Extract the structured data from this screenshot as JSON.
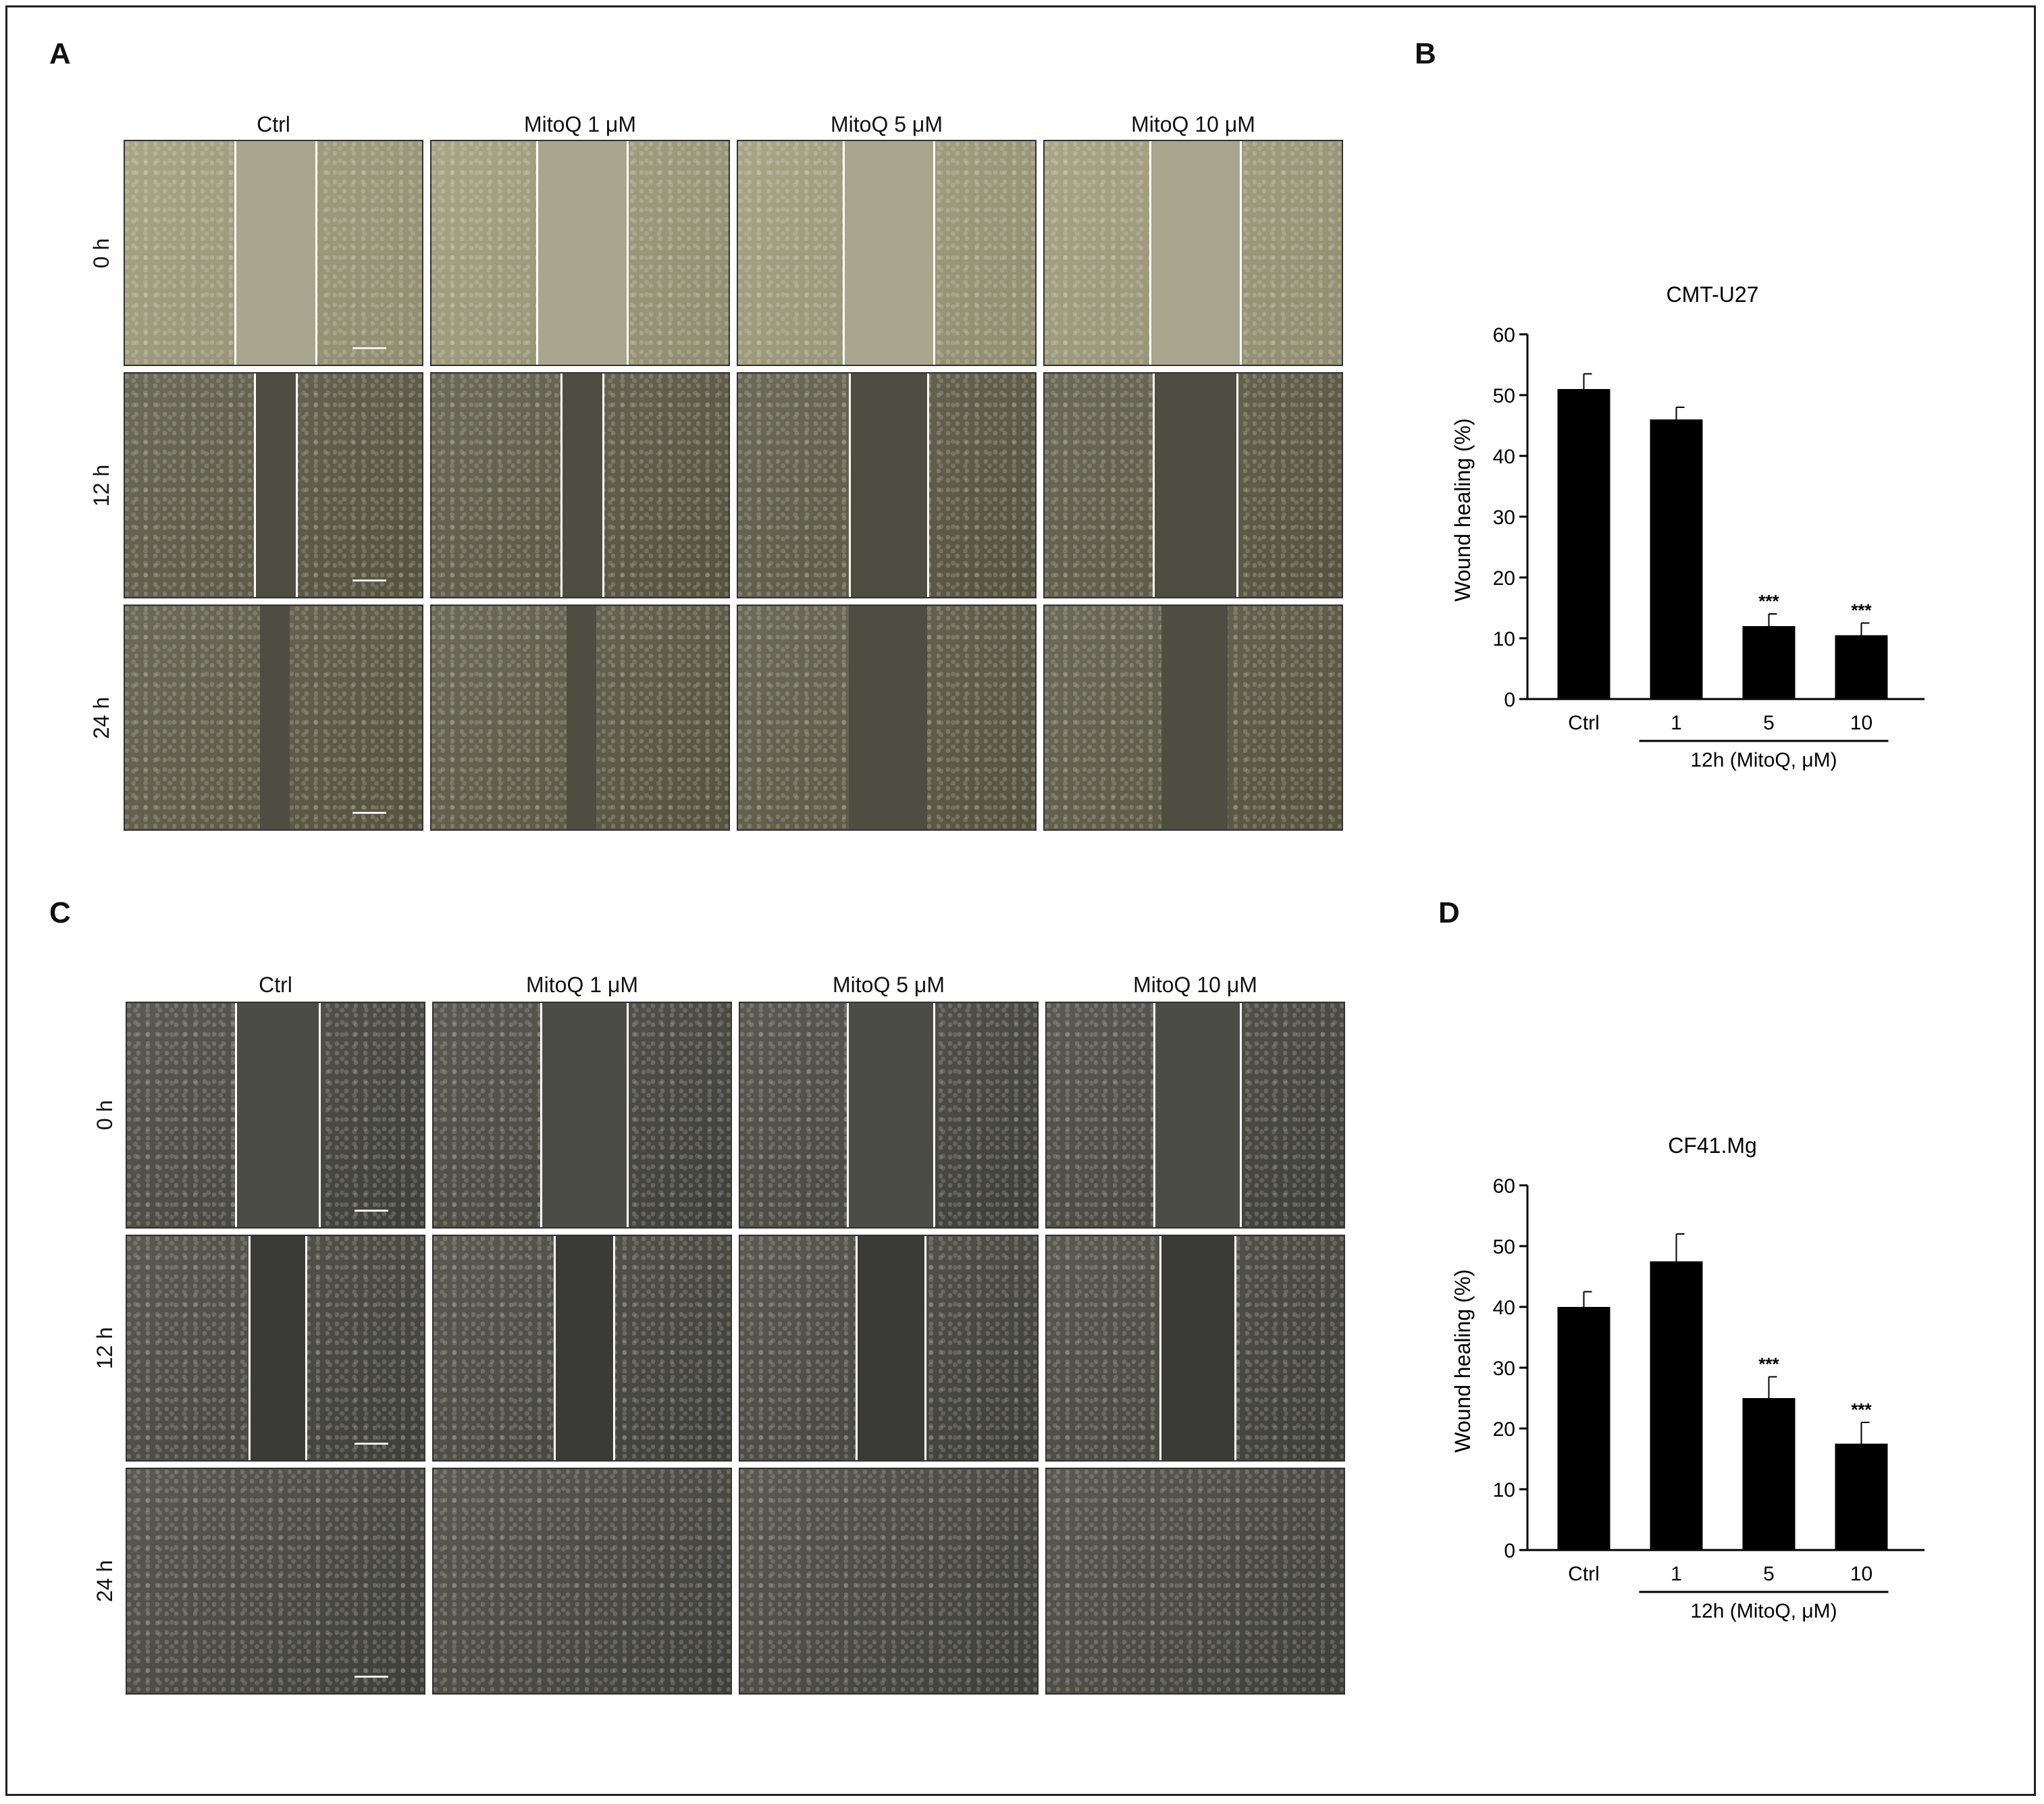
{
  "panels": {
    "A": {
      "letter": "A",
      "columns": [
        "Ctrl",
        "MitoQ 1 μM",
        "MitoQ 5 μM",
        "MitoQ 10 μM"
      ],
      "rows": [
        "0 h",
        "12 h",
        "24 h"
      ],
      "cell_line_style": "rounded-cells-yellowish"
    },
    "B": {
      "letter": "B"
    },
    "C": {
      "letter": "C",
      "columns": [
        "Ctrl",
        "MitoQ 1 μM",
        "MitoQ 5 μM",
        "MitoQ 10 μM"
      ],
      "rows": [
        "0 h",
        "12 h",
        "24 h"
      ],
      "cell_line_style": "spindle-cells-dark"
    },
    "D": {
      "letter": "D"
    }
  },
  "chart_data": [
    {
      "type": "bar",
      "title": "CMT-U27",
      "ylabel": "Wound healing (%)",
      "xlabel": "12h (MitoQ, μM)",
      "categories": [
        "Ctrl",
        "1",
        "5",
        "10"
      ],
      "values": [
        51,
        46,
        12,
        10.5
      ],
      "errors": [
        2.5,
        2,
        2,
        2
      ],
      "annotations": [
        "",
        "",
        "***",
        "***"
      ],
      "ylim": [
        0,
        60
      ],
      "yticks": [
        0,
        10,
        20,
        30,
        40,
        50,
        60
      ],
      "bar_color": "#000000",
      "grid": false
    },
    {
      "type": "bar",
      "title": "CF41.Mg",
      "ylabel": "Wound healing (%)",
      "xlabel": "12h (MitoQ, μM)",
      "categories": [
        "Ctrl",
        "1",
        "5",
        "10"
      ],
      "values": [
        40,
        47.5,
        25,
        17.5
      ],
      "errors": [
        2.5,
        4.5,
        3.5,
        3.5
      ],
      "annotations": [
        "",
        "",
        "***",
        "***"
      ],
      "ylim": [
        0,
        60
      ],
      "yticks": [
        0,
        10,
        20,
        30,
        40,
        50,
        60
      ],
      "bar_color": "#000000",
      "grid": false
    }
  ]
}
